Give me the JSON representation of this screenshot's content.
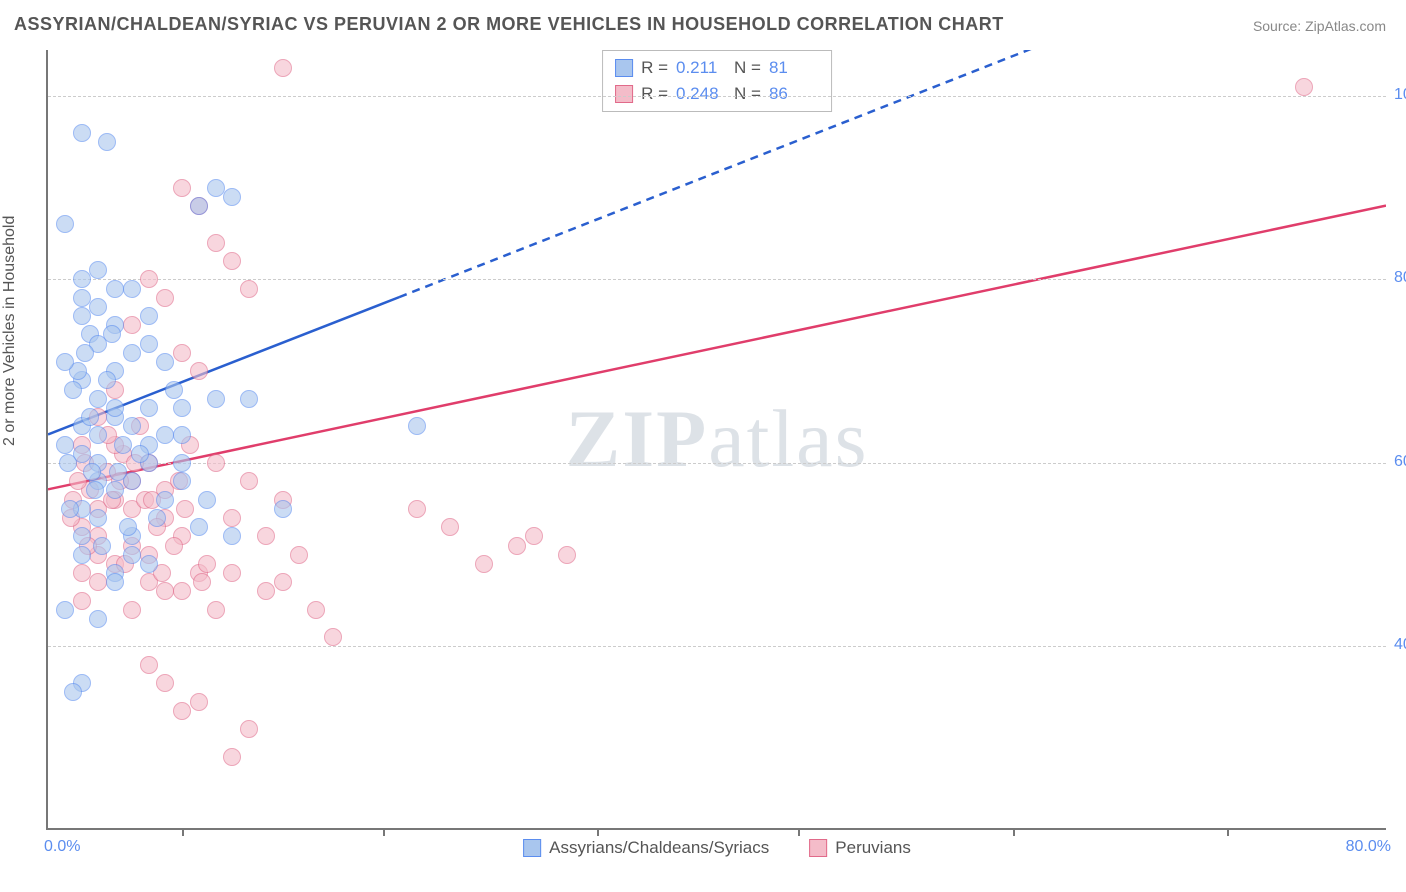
{
  "title": "ASSYRIAN/CHALDEAN/SYRIAC VS PERUVIAN 2 OR MORE VEHICLES IN HOUSEHOLD CORRELATION CHART",
  "source": "Source: ZipAtlas.com",
  "watermark_bold": "ZIP",
  "watermark_light": "atlas",
  "y_axis_label": "2 or more Vehicles in Household",
  "chart": {
    "xlim": [
      0,
      80
    ],
    "ylim": [
      20,
      105
    ],
    "x_tick_left_label": "0.0%",
    "x_tick_right_label": "80.0%",
    "x_tick_positions_pct": [
      10,
      25,
      41,
      56,
      72,
      88
    ],
    "y_ticks": [
      {
        "v": 40,
        "label": "40.0%"
      },
      {
        "v": 60,
        "label": "60.0%"
      },
      {
        "v": 80,
        "label": "80.0%"
      },
      {
        "v": 100,
        "label": "100.0%"
      }
    ],
    "grid_color": "#cccccc",
    "axis_color": "#777777",
    "bg": "#ffffff"
  },
  "series": {
    "blue": {
      "name": "Assyrians/Chaldeans/Syriacs",
      "fill": "#a9c6ee",
      "stroke": "#5b8def",
      "line_color": "#2a5fcf",
      "R": "0.211",
      "N": "81",
      "trend": {
        "x1": 0,
        "y1": 63,
        "x2_solid": 21,
        "y2_solid": 78,
        "x2_dash": 60,
        "y2_dash": 106
      },
      "points": [
        [
          2,
          96
        ],
        [
          3.5,
          95
        ],
        [
          10,
          90
        ],
        [
          11,
          89
        ],
        [
          9,
          88
        ],
        [
          1,
          86
        ],
        [
          3,
          81
        ],
        [
          2,
          80
        ],
        [
          4,
          79
        ],
        [
          5,
          79
        ],
        [
          3,
          77
        ],
        [
          2,
          76
        ],
        [
          6,
          76
        ],
        [
          4,
          75
        ],
        [
          2.5,
          74
        ],
        [
          3,
          73
        ],
        [
          5,
          72
        ],
        [
          7,
          71
        ],
        [
          4,
          70
        ],
        [
          2,
          69
        ],
        [
          1.5,
          68
        ],
        [
          3,
          67
        ],
        [
          6,
          66
        ],
        [
          8,
          66
        ],
        [
          4,
          65
        ],
        [
          2,
          64
        ],
        [
          5,
          64
        ],
        [
          3,
          63
        ],
        [
          7,
          63
        ],
        [
          1,
          62
        ],
        [
          4.5,
          62
        ],
        [
          2,
          61
        ],
        [
          6,
          60
        ],
        [
          3,
          60
        ],
        [
          8,
          60
        ],
        [
          10,
          67
        ],
        [
          12,
          67
        ],
        [
          5,
          58
        ],
        [
          4,
          57
        ],
        [
          7,
          56
        ],
        [
          2,
          55
        ],
        [
          14,
          55
        ],
        [
          3,
          54
        ],
        [
          9,
          53
        ],
        [
          5,
          52
        ],
        [
          2,
          50
        ],
        [
          6,
          49
        ],
        [
          4,
          48
        ],
        [
          11,
          52
        ],
        [
          8,
          58
        ],
        [
          1,
          44
        ],
        [
          3,
          43
        ],
        [
          2,
          36
        ],
        [
          1.5,
          35
        ],
        [
          22,
          64
        ],
        [
          4,
          66
        ],
        [
          3.5,
          69
        ],
        [
          6,
          73
        ],
        [
          7.5,
          68
        ],
        [
          2.5,
          65
        ],
        [
          4,
          47
        ],
        [
          5,
          50
        ],
        [
          6,
          62
        ],
        [
          3,
          58
        ],
        [
          8,
          63
        ],
        [
          1.2,
          60
        ],
        [
          2.8,
          57
        ],
        [
          4.2,
          59
        ],
        [
          5.5,
          61
        ],
        [
          1.8,
          70
        ],
        [
          2.2,
          72
        ],
        [
          3.8,
          74
        ],
        [
          6.5,
          54
        ],
        [
          9.5,
          56
        ],
        [
          2,
          52
        ],
        [
          3.2,
          51
        ],
        [
          4.8,
          53
        ],
        [
          1.3,
          55
        ],
        [
          2.6,
          59
        ],
        [
          1,
          71
        ],
        [
          2,
          78
        ]
      ]
    },
    "pink": {
      "name": "Peruvians",
      "fill": "#f4bcc9",
      "stroke": "#e16a8a",
      "line_color": "#e03d6b",
      "R": "0.248",
      "N": "86",
      "trend": {
        "x1": 0,
        "y1": 57,
        "x2": 80,
        "y2": 88
      },
      "points": [
        [
          14,
          103
        ],
        [
          75,
          101
        ],
        [
          8,
          90
        ],
        [
          9,
          88
        ],
        [
          10,
          84
        ],
        [
          11,
          82
        ],
        [
          6,
          80
        ],
        [
          12,
          79
        ],
        [
          7,
          78
        ],
        [
          5,
          75
        ],
        [
          8,
          72
        ],
        [
          9,
          70
        ],
        [
          4,
          68
        ],
        [
          3,
          65
        ],
        [
          2,
          62
        ],
        [
          6,
          60
        ],
        [
          5,
          58
        ],
        [
          4,
          56
        ],
        [
          3,
          55
        ],
        [
          7,
          54
        ],
        [
          2,
          53
        ],
        [
          8,
          52
        ],
        [
          5,
          51
        ],
        [
          6,
          50
        ],
        [
          4,
          49
        ],
        [
          9,
          48
        ],
        [
          3,
          47
        ],
        [
          7,
          46
        ],
        [
          2,
          45
        ],
        [
          5,
          44
        ],
        [
          11,
          54
        ],
        [
          13,
          52
        ],
        [
          15,
          50
        ],
        [
          14,
          47
        ],
        [
          16,
          44
        ],
        [
          17,
          41
        ],
        [
          8.5,
          62
        ],
        [
          10,
          60
        ],
        [
          12,
          58
        ],
        [
          14,
          56
        ],
        [
          22,
          55
        ],
        [
          24,
          53
        ],
        [
          29,
          52
        ],
        [
          31,
          50
        ],
        [
          26,
          49
        ],
        [
          28,
          51
        ],
        [
          6,
          38
        ],
        [
          7,
          36
        ],
        [
          9,
          34
        ],
        [
          8,
          33
        ],
        [
          12,
          31
        ],
        [
          11,
          28
        ],
        [
          5.5,
          64
        ],
        [
          4.5,
          61
        ],
        [
          3.5,
          59
        ],
        [
          2.5,
          57
        ],
        [
          1.5,
          56
        ],
        [
          6.5,
          53
        ],
        [
          7.5,
          51
        ],
        [
          9.5,
          49
        ],
        [
          4,
          62
        ],
        [
          5,
          55
        ],
        [
          3,
          50
        ],
        [
          8,
          46
        ],
        [
          10,
          44
        ],
        [
          6,
          47
        ],
        [
          2,
          48
        ],
        [
          7,
          57
        ],
        [
          11,
          48
        ],
        [
          13,
          46
        ],
        [
          3,
          52
        ],
        [
          4.3,
          58
        ],
        [
          5.8,
          56
        ],
        [
          2.2,
          60
        ],
        [
          6.2,
          56
        ],
        [
          8.2,
          55
        ],
        [
          1.8,
          58
        ],
        [
          3.6,
          63
        ],
        [
          5.2,
          60
        ],
        [
          7.8,
          58
        ],
        [
          2.4,
          51
        ],
        [
          4.6,
          49
        ],
        [
          6.8,
          48
        ],
        [
          9.2,
          47
        ],
        [
          1.4,
          54
        ],
        [
          3.8,
          56
        ]
      ]
    }
  },
  "stats_labels": {
    "R": "R  =",
    "N": "N  ="
  }
}
